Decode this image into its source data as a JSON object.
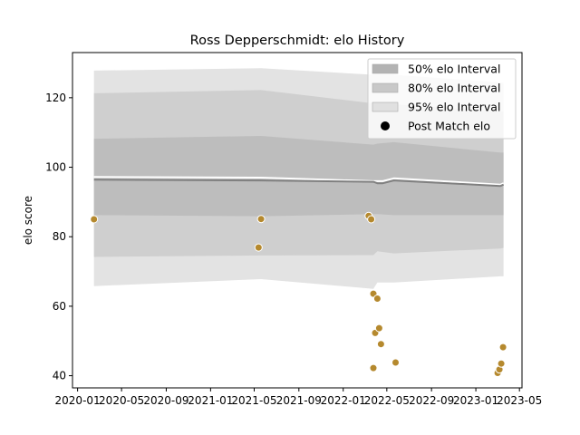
{
  "chart_data": {
    "type": "line",
    "title": "Ross Depperschmidt: elo History",
    "xlabel": "",
    "ylabel": "elo score",
    "xlim": [
      "2019-12-18",
      "2023-05-08"
    ],
    "ylim": [
      36.5,
      133
    ],
    "x_ticks": [
      {
        "date": "2020-01-01",
        "label": "2020-01"
      },
      {
        "date": "2020-05-01",
        "label": "2020-05"
      },
      {
        "date": "2020-09-01",
        "label": "2020-09"
      },
      {
        "date": "2021-01-01",
        "label": "2021-01"
      },
      {
        "date": "2021-05-01",
        "label": "2021-05"
      },
      {
        "date": "2021-09-01",
        "label": "2021-09"
      },
      {
        "date": "2022-01-01",
        "label": "2022-01"
      },
      {
        "date": "2022-05-01",
        "label": "2022-05"
      },
      {
        "date": "2022-09-01",
        "label": "2022-09"
      },
      {
        "date": "2023-01-01",
        "label": "2023-01"
      },
      {
        "date": "2023-05-01",
        "label": "2023-05"
      }
    ],
    "y_ticks": [
      40,
      60,
      80,
      100,
      120
    ],
    "grid": false,
    "legend_position": "top-right",
    "legend": [
      {
        "label": "50% elo Interval",
        "kind": "band",
        "color": "#b3b3b3"
      },
      {
        "label": "80% elo Interval",
        "kind": "band",
        "color": "#c8c8c8"
      },
      {
        "label": "95% elo Interval",
        "kind": "band",
        "color": "#e0e0e0"
      },
      {
        "label": "Post Match elo",
        "kind": "marker",
        "color": "#000000"
      }
    ],
    "series": [
      {
        "kind": "band",
        "color": "#e3e3e3",
        "x": [
          "2020-02-15",
          "2021-05-20",
          "2022-03-25",
          "2022-04-05",
          "2022-05-20",
          "2023-03-10",
          "2023-03-18"
        ],
        "lower": [
          65.8,
          67.8,
          65.0,
          66.8,
          66.8,
          68.6,
          68.6
        ],
        "upper": [
          127.8,
          128.5,
          126.6,
          126.6,
          126.6,
          124.4,
          124.2
        ]
      },
      {
        "kind": "band",
        "color": "#cfcfcf",
        "x": [
          "2020-02-15",
          "2021-05-20",
          "2022-03-25",
          "2022-04-05",
          "2022-05-20",
          "2023-03-10",
          "2023-03-18"
        ],
        "lower": [
          74.2,
          74.6,
          74.7,
          75.8,
          75.2,
          76.6,
          76.8
        ],
        "upper": [
          121.3,
          122.2,
          118.4,
          118.4,
          118.1,
          116.0,
          116.0
        ]
      },
      {
        "kind": "band",
        "color": "#bdbdbd",
        "x": [
          "2020-02-15",
          "2021-05-20",
          "2022-03-25",
          "2022-04-05",
          "2022-05-20",
          "2023-03-10",
          "2023-03-18"
        ],
        "lower": [
          86.2,
          85.9,
          86.5,
          86.5,
          86.2,
          86.2,
          86.2
        ],
        "upper": [
          108.2,
          109.0,
          106.5,
          106.8,
          107.2,
          104.2,
          104.2
        ]
      },
      {
        "kind": "line",
        "name": "",
        "color": "#ffffff",
        "x": [
          "2020-02-15",
          "2021-05-20",
          "2022-03-25",
          "2022-04-05",
          "2022-04-20",
          "2022-05-20",
          "2023-03-10",
          "2023-03-18"
        ],
        "y": [
          97.2,
          97.0,
          96.0,
          96.0,
          96.0,
          96.8,
          95.0,
          95.4
        ]
      },
      {
        "kind": "line",
        "name": "",
        "color": "#808080",
        "x": [
          "2020-02-15",
          "2021-05-20",
          "2022-03-25",
          "2022-04-05",
          "2022-04-20",
          "2022-05-20",
          "2023-03-10",
          "2023-03-18"
        ],
        "y": [
          96.4,
          96.2,
          95.8,
          95.4,
          95.4,
          96.2,
          94.6,
          95.0
        ]
      },
      {
        "kind": "scatter",
        "name": "Post Match elo",
        "color": "#b5892e",
        "points": [
          {
            "x": "2020-02-15",
            "y": 85.0
          },
          {
            "x": "2021-05-13",
            "y": 76.9
          },
          {
            "x": "2021-05-20",
            "y": 85.1
          },
          {
            "x": "2022-03-12",
            "y": 86.0
          },
          {
            "x": "2022-03-19",
            "y": 85.0
          },
          {
            "x": "2022-03-25",
            "y": 63.6
          },
          {
            "x": "2022-03-25",
            "y": 42.2
          },
          {
            "x": "2022-03-30",
            "y": 52.3
          },
          {
            "x": "2022-04-05",
            "y": 62.2
          },
          {
            "x": "2022-04-10",
            "y": 53.7
          },
          {
            "x": "2022-04-15",
            "y": 49.1
          },
          {
            "x": "2022-05-25",
            "y": 43.8
          },
          {
            "x": "2023-03-02",
            "y": 40.8
          },
          {
            "x": "2023-03-07",
            "y": 41.8
          },
          {
            "x": "2023-03-12",
            "y": 43.5
          },
          {
            "x": "2023-03-17",
            "y": 48.2
          }
        ]
      }
    ]
  }
}
